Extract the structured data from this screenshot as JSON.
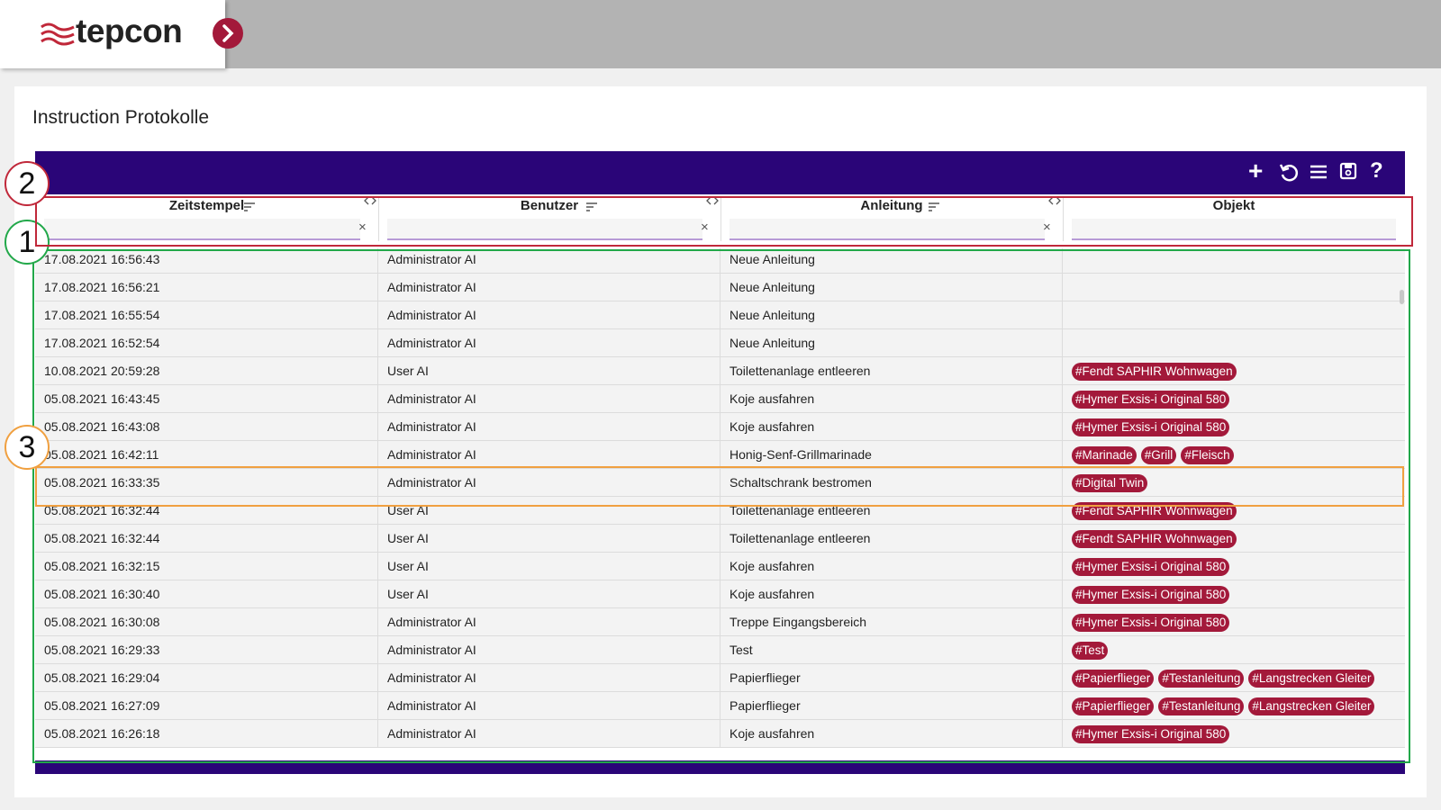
{
  "header": {
    "logo": "tepcon"
  },
  "page": {
    "title": "Instruction Protokolle"
  },
  "toolbar": {
    "add": "+",
    "help": "?"
  },
  "table": {
    "columns": [
      "Zeitstempel",
      "Benutzer",
      "Anleitung",
      "Objekt"
    ],
    "filter_clear": "×",
    "rows": [
      [
        "17.08.2021 16:56:43",
        "Administrator AI",
        "Neue Anleitung",
        []
      ],
      [
        "17.08.2021 16:56:21",
        "Administrator AI",
        "Neue Anleitung",
        []
      ],
      [
        "17.08.2021 16:55:54",
        "Administrator AI",
        "Neue Anleitung",
        []
      ],
      [
        "17.08.2021 16:52:54",
        "Administrator AI",
        "Neue Anleitung",
        []
      ],
      [
        "10.08.2021 20:59:28",
        "User AI",
        "Toilettenanlage entleeren",
        [
          "#Fendt SAPHIR Wohnwagen"
        ]
      ],
      [
        "05.08.2021 16:43:45",
        "Administrator AI",
        "Koje ausfahren",
        [
          "#Hymer Exsis-i Original 580"
        ]
      ],
      [
        "05.08.2021 16:43:08",
        "Administrator AI",
        "Koje ausfahren",
        [
          "#Hymer Exsis-i Original 580"
        ]
      ],
      [
        "05.08.2021 16:42:11",
        "Administrator AI",
        "Honig-Senf-Grillmarinade",
        [
          "#Marinade",
          "#Grill",
          "#Fleisch"
        ]
      ],
      [
        "05.08.2021 16:33:35",
        "Administrator AI",
        "Schaltschrank bestromen",
        [
          "#Digital Twin"
        ]
      ],
      [
        "05.08.2021 16:32:44",
        "User AI",
        "Toilettenanlage entleeren",
        [
          "#Fendt SAPHIR Wohnwagen"
        ]
      ],
      [
        "05.08.2021 16:32:44",
        "User AI",
        "Toilettenanlage entleeren",
        [
          "#Fendt SAPHIR Wohnwagen"
        ]
      ],
      [
        "05.08.2021 16:32:15",
        "User AI",
        "Koje ausfahren",
        [
          "#Hymer Exsis-i Original 580"
        ]
      ],
      [
        "05.08.2021 16:30:40",
        "User AI",
        "Koje ausfahren",
        [
          "#Hymer Exsis-i Original 580"
        ]
      ],
      [
        "05.08.2021 16:30:08",
        "Administrator AI",
        "Treppe Eingangsbereich",
        [
          "#Hymer Exsis-i Original 580"
        ]
      ],
      [
        "05.08.2021 16:29:33",
        "Administrator AI",
        "Test",
        [
          "#Test"
        ]
      ],
      [
        "05.08.2021 16:29:04",
        "Administrator AI",
        "Papierflieger",
        [
          "#Papierflieger",
          "#Testanleitung",
          "#Langstrecken Gleiter"
        ]
      ],
      [
        "05.08.2021 16:27:09",
        "Administrator AI",
        "Papierflieger",
        [
          "#Papierflieger",
          "#Testanleitung",
          "#Langstrecken Gleiter"
        ]
      ],
      [
        "05.08.2021 16:26:18",
        "Administrator AI",
        "Koje ausfahren",
        [
          "#Hymer Exsis-i Original 580"
        ]
      ]
    ]
  },
  "annotations": [
    "1",
    "2",
    "3"
  ]
}
